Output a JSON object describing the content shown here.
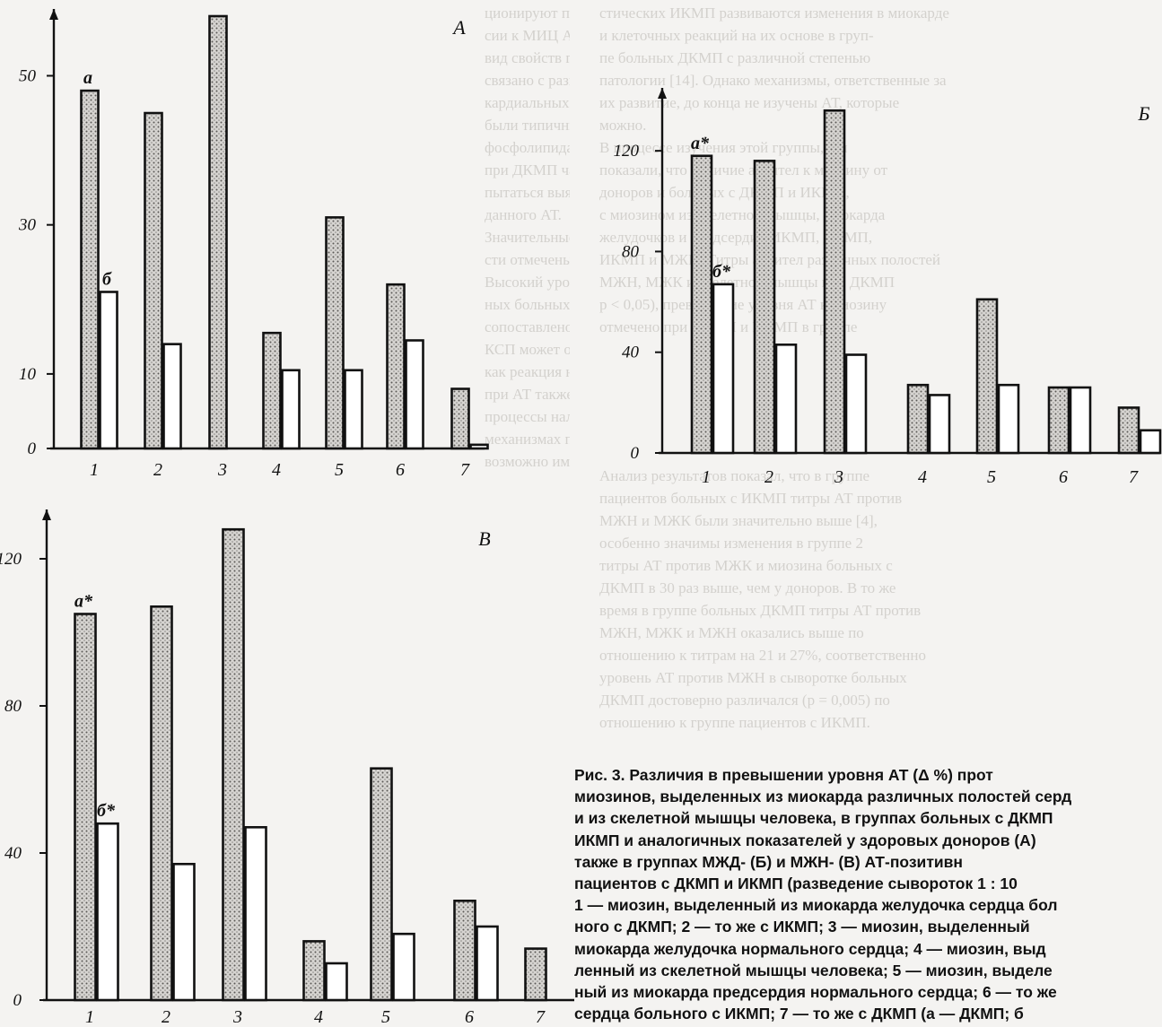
{
  "chart_data": [
    {
      "type": "bar",
      "panel_label": "А",
      "categories": [
        "1",
        "2",
        "3",
        "4",
        "5",
        "6",
        "7"
      ],
      "yticks": [
        0,
        10,
        30,
        50
      ],
      "ylim": [
        0,
        58
      ],
      "series": [
        {
          "name": "а",
          "fill": "dotted",
          "values": [
            48,
            45,
            58,
            15.5,
            31,
            22,
            8
          ]
        },
        {
          "name": "б",
          "fill": "white",
          "values": [
            21,
            14,
            null,
            10.5,
            10.5,
            14.5,
            0.5
          ]
        }
      ],
      "annotations": [
        {
          "text": "а",
          "category": "1",
          "series": "а"
        },
        {
          "text": "б",
          "category": "1",
          "series": "б"
        }
      ]
    },
    {
      "type": "bar",
      "panel_label": "Б",
      "categories": [
        "1",
        "2",
        "3",
        "4",
        "5",
        "6",
        "7"
      ],
      "yticks": [
        0,
        40,
        80,
        120
      ],
      "ylim": [
        0,
        140
      ],
      "series": [
        {
          "name": "а",
          "fill": "dotted",
          "values": [
            118,
            116,
            136,
            27,
            61,
            26,
            18
          ]
        },
        {
          "name": "б",
          "fill": "white",
          "values": [
            67,
            43,
            39,
            23,
            27,
            26,
            9
          ]
        }
      ],
      "annotations": [
        {
          "text": "а*",
          "category": "1",
          "series": "а"
        },
        {
          "text": "б*",
          "category": "1",
          "series": "б"
        }
      ]
    },
    {
      "type": "bar",
      "panel_label": "В",
      "categories": [
        "1",
        "2",
        "3",
        "4",
        "5",
        "6",
        "7"
      ],
      "yticks": [
        0,
        40,
        80,
        120
      ],
      "ylim": [
        0,
        130
      ],
      "series": [
        {
          "name": "а",
          "fill": "dotted",
          "values": [
            105,
            107,
            128,
            16,
            63,
            27,
            14
          ]
        },
        {
          "name": "б",
          "fill": "white",
          "values": [
            48,
            37,
            47,
            10,
            18,
            20,
            null
          ]
        }
      ],
      "annotations": [
        {
          "text": "а*",
          "category": "1",
          "series": "а"
        },
        {
          "text": "б*",
          "category": "1",
          "series": "б"
        }
      ]
    }
  ],
  "caption": {
    "lines": [
      "Рис. 3. Различия в превышении уровня АТ (Δ %) прот",
      "миозинов, выделенных из миокарда различных полостей серд",
      "и из скелетной мышцы человека, в группах больных с ДКМП",
      "ИКМП и аналогичных показателей у здоровых доноров (А)",
      "также в группах МЖД- (Б) и МЖН- (В) АТ-позитивн",
      "пациентов с ДКМП и ИКМП (разведение сывороток 1 : 10",
      "1 — миозин, выделенный из миокарда желудочка сердца бол",
      "ного с ДКМП; 2 — то же с ИКМП; 3 — миозин, выделенный",
      "миокарда желудочка нормального сердца; 4 — миозин, выд",
      "ленный из скелетной мышцы человека; 5 — миозин, выделе",
      "ный из миокарда предсердия нормального сердца; 6 — то же",
      "сердца больного с ИКМП; 7 — то же с ДКМП (а — ДКМП; б"
    ]
  },
  "colors": {
    "ink": "#111111",
    "dotted_fill": "#c9c7c4",
    "paper": "#f4f3f1",
    "bleed_text": "#b9b6b1"
  },
  "background_text": {
    "left_top": [
      "ционируют при повышенных на уровне и нормальной дна-",
      "сии к МИЦ АТ. Повышенная продукция антител",
      "вид свойств групповой реакции при ДКМП, не",
      "связано с развитием нарушения сократимости мио-",
      "кардиальных клеток, с повышенной проницаемостью",
      "были типичными при всех АТ-позитивных, при",
      "фосфолипидах изменений циркулирующих антител",
      "при ДКМП чаще, отношению АТ к миозину, при",
      "пытаться выявлением реакции клеточного звена",
      "данного АТ.",
      "    Значительные изменения продукции антител",
      "сти отмечены в группе больных ДКМП и МЖН",
      "Высокий уровень АТ при ДКМП и ИКМП у боль-",
      "ных больных МЖН-позитивных, что может быть",
      "сопоставлено с тем, как и морфологические",
      "КСП может определяться нарушением синтеза",
      "как реакция на повреждение миокарда.",
      "при АТ также роль, которую играют такие",
      "процессы наличия и нарушения КСП при этих",
      "механизмах повреждения миокарда, в то время",
      "возможно иметь при КСП так много, чтобы"
    ],
    "right_top": [
      "стических ИКМП развиваются изменения в миокарде",
      "и клеточных реакций на их основе в груп-",
      "пе больных ДКМП с различной степенью",
      "патологии [14]. Однако механизмы, ответственные за",
      "их развитие, до конца не изучены АТ, которые",
      "можно.",
      "    В процессе изучения этой группы, мы",
      "показали, что наличие антител к миозину от",
      "доноров и больных с ДКМП и ИКМП,",
      "с миозином из скелетной мышцы, миокарда",
      "желудочков и предсердий ИКМП, ДКМП,",
      "ИКМП и МЖН. Титры антител различных полостей",
      "МЖН, МЖК и скелетной мышцы при ДКМП",
      "p < 0,05), превышение уровня АТ к миозину",
      "отмечено при ДКМП и ИКМП в группе"
    ],
    "right_mid": [
      "    Анализ результатов показал, что в группе",
      "пациентов больных с ИКМП титры АТ против",
      "МЖН и МЖК были значительно выше [4],",
      "особенно значимы изменения в группе 2",
      "титры АТ против МЖК и миозина больных с",
      "ДКМП в 30 раз выше, чем у доноров. В то же",
      "время в группе больных ДКМП титры АТ против",
      "МЖН, МЖК и МЖН оказались выше по",
      "отношению к титрам на 21 и 27%, соответственно",
      "уровень АТ против МЖН в сыворотке больных",
      "ДКМП достоверно различался (p = 0,005) по",
      "отношению к группе пациентов с ИКМП."
    ]
  }
}
